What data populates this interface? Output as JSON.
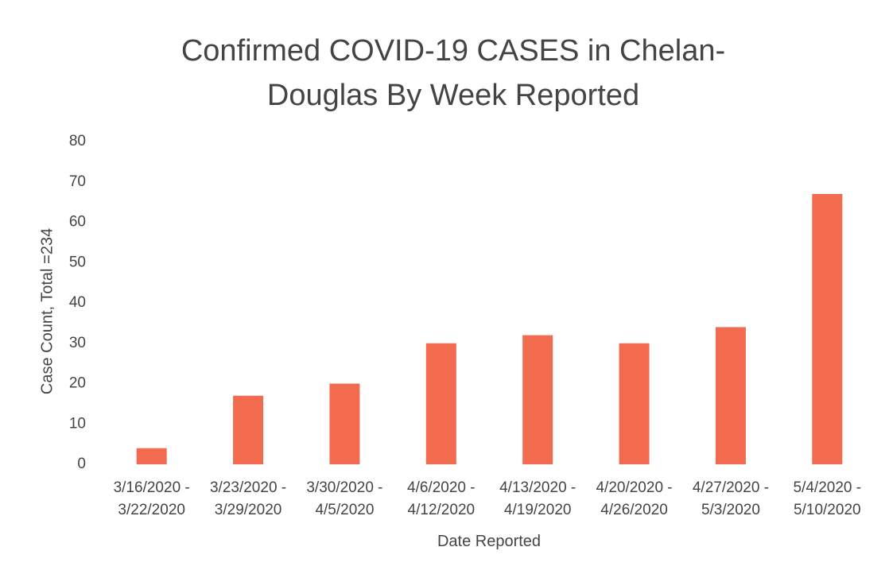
{
  "chart_data": {
    "type": "bar",
    "title": "Confirmed COVID-19 CASES in Chelan-Douglas By Week Reported",
    "x_label": "Date Reported",
    "y_label": "Case Count, Total =234",
    "categories": [
      "3/16/2020 - 3/22/2020",
      "3/23/2020 - 3/29/2020",
      "3/30/2020 - 4/5/2020",
      "4/6/2020 - 4/12/2020",
      "4/13/2020 - 4/19/2020",
      "4/20/2020 - 4/26/2020",
      "4/27/2020 - 5/3/2020",
      "5/4/2020 - 5/10/2020"
    ],
    "values": [
      4,
      17,
      20,
      30,
      32,
      30,
      34,
      67
    ],
    "color": "#f26b4f",
    "ylim": [
      0,
      80
    ],
    "yticks": [
      0,
      10,
      20,
      30,
      40,
      50,
      60,
      70,
      80
    ],
    "grid": false
  }
}
